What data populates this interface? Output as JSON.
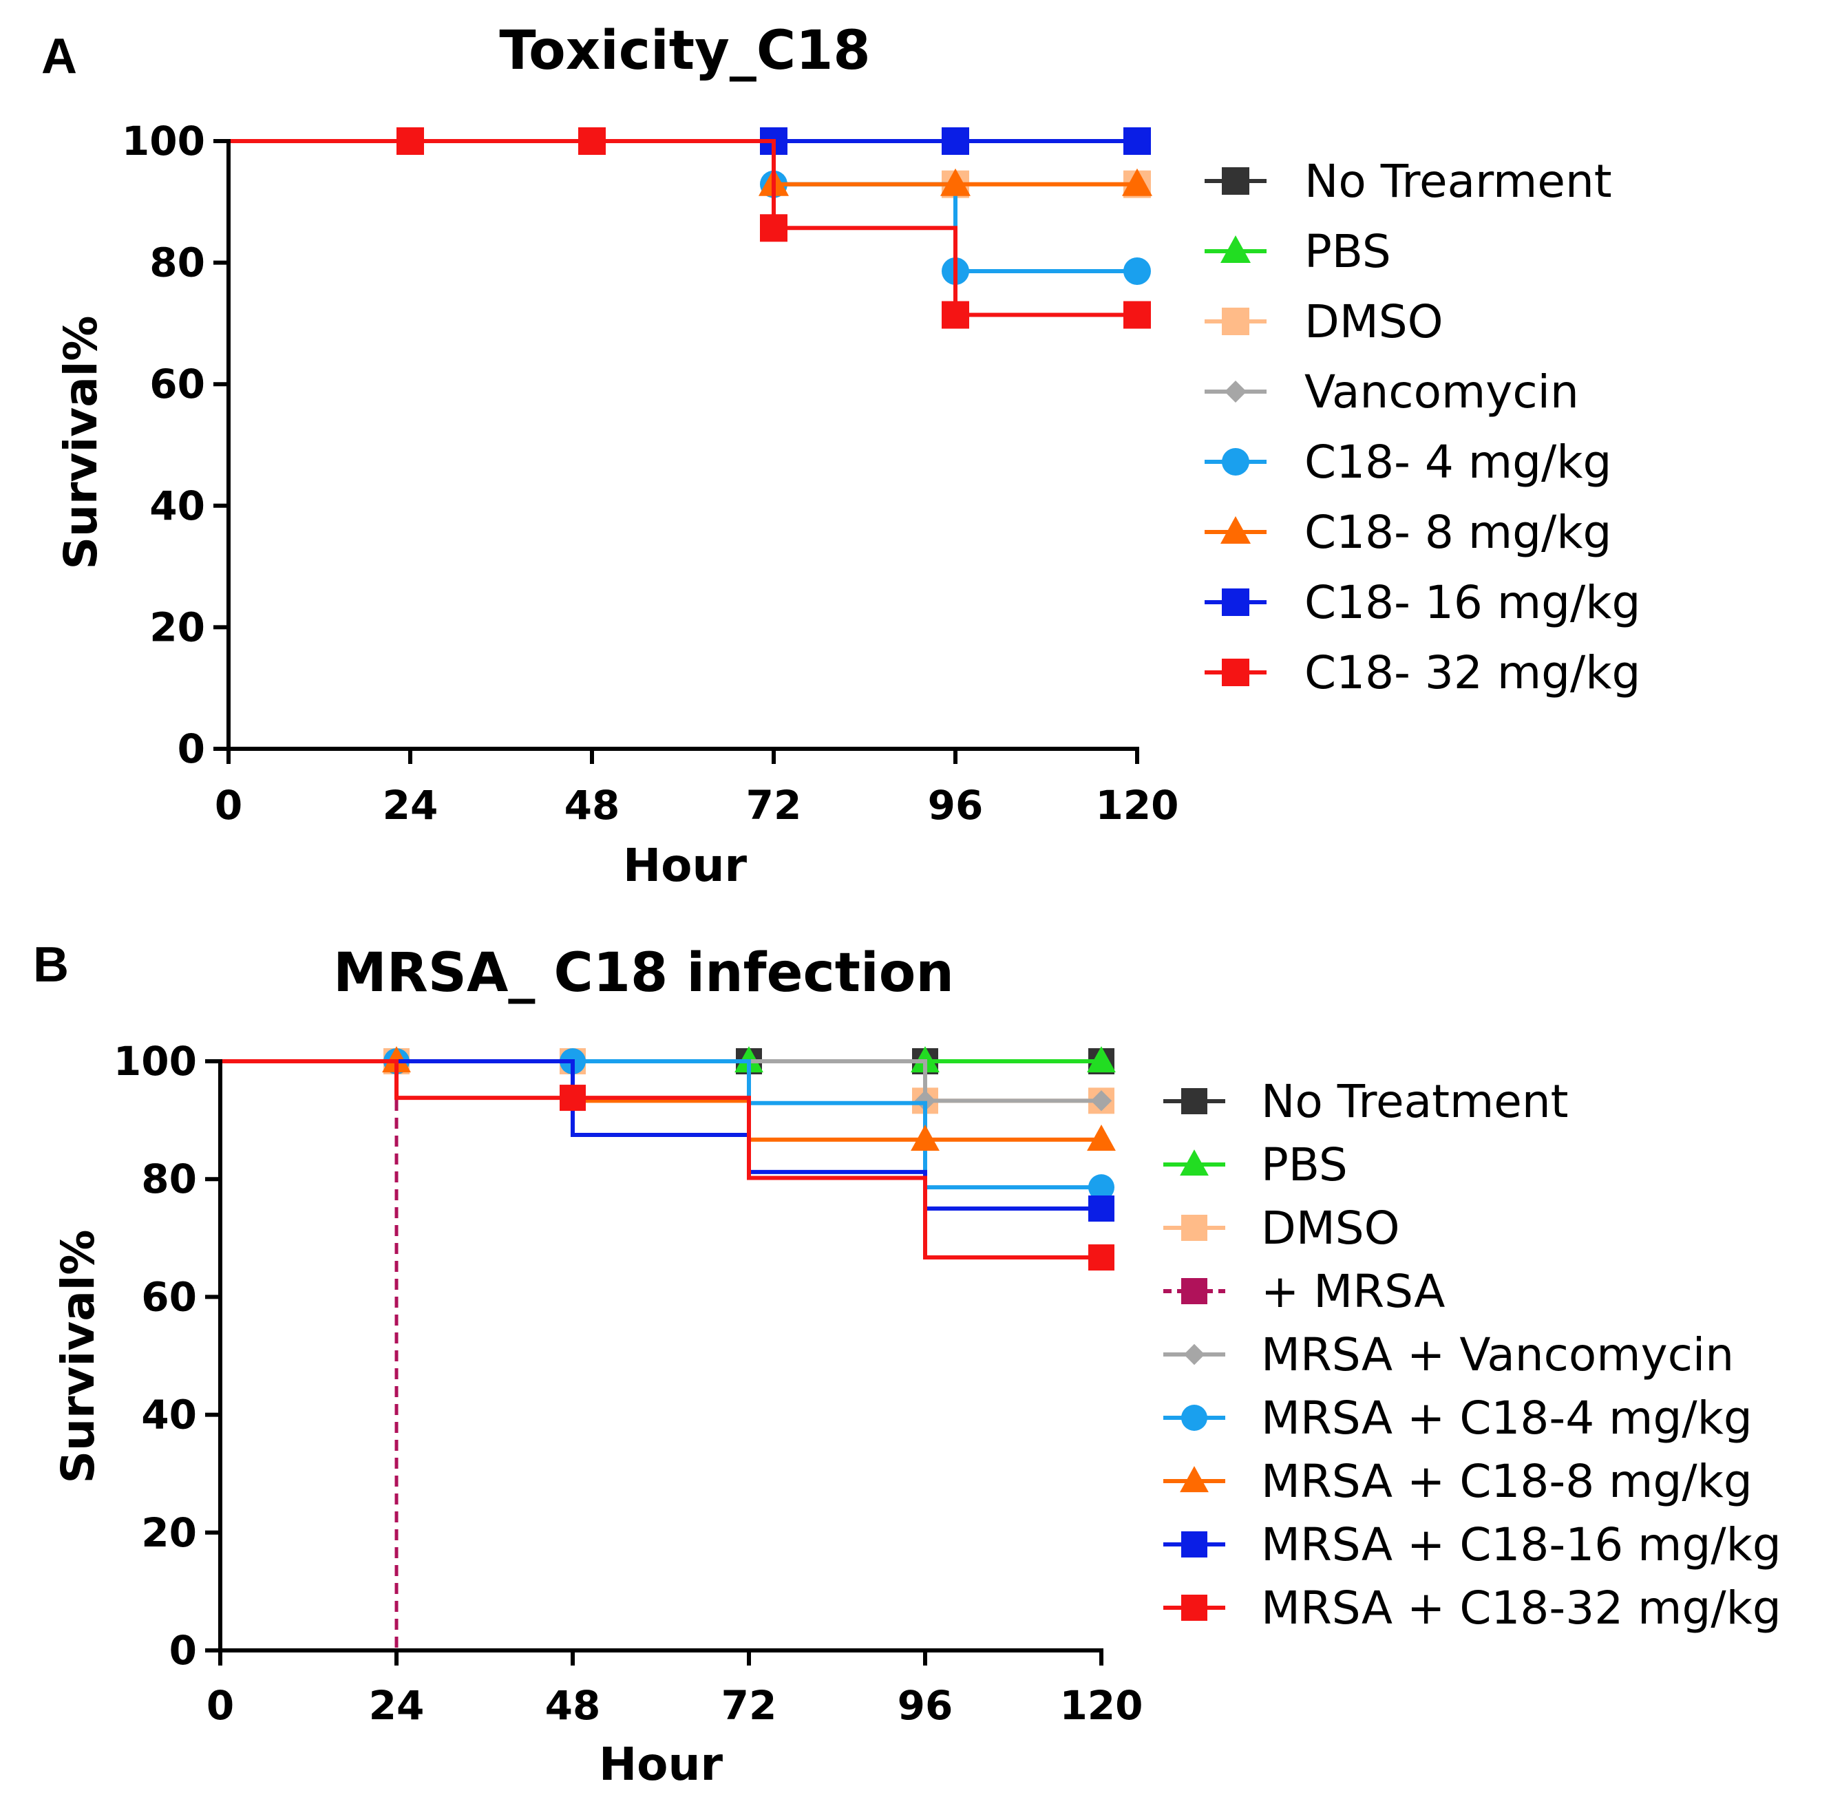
{
  "chart_data": [
    {
      "type": "line",
      "panel_letter": "A",
      "title": "Toxicity_C18",
      "xlabel": "Hour",
      "ylabel": "Survival%",
      "xlim": [
        0,
        120
      ],
      "ylim": [
        0,
        100
      ],
      "xticks": [
        0,
        24,
        48,
        72,
        96,
        120
      ],
      "yticks": [
        0,
        20,
        40,
        60,
        80,
        100
      ],
      "legend_position": "right",
      "series": [
        {
          "name": "No Trearment",
          "color": "#333333",
          "marker": "square",
          "dashed": false,
          "x": [
            0,
            24,
            48,
            72,
            96,
            120
          ],
          "y": [
            100,
            100,
            100,
            100,
            100,
            100
          ],
          "markers_at": []
        },
        {
          "name": "PBS",
          "color": "#22dd22",
          "marker": "triangle",
          "dashed": false,
          "x": [
            0,
            24,
            48,
            72,
            96,
            120
          ],
          "y": [
            100,
            100,
            100,
            100,
            100,
            100
          ],
          "markers_at": []
        },
        {
          "name": "DMSO",
          "color": "#ffbb88",
          "marker": "square",
          "dashed": false,
          "x": [
            0,
            24,
            48,
            72,
            96,
            120
          ],
          "y": [
            100,
            100,
            100,
            92.9,
            92.9,
            92.9
          ],
          "markers_at": [
            96,
            120
          ]
        },
        {
          "name": "Vancomycin",
          "color": "#a6a6a6",
          "marker": "diamond",
          "dashed": false,
          "x": [
            0,
            24,
            48,
            72,
            96,
            120
          ],
          "y": [
            100,
            100,
            100,
            100,
            100,
            100
          ],
          "markers_at": []
        },
        {
          "name": "C18- 4 mg/kg",
          "color": "#1aa0ee",
          "marker": "circle",
          "dashed": false,
          "x": [
            0,
            24,
            48,
            72,
            96,
            120
          ],
          "y": [
            100,
            100,
            100,
            92.9,
            78.6,
            78.6
          ],
          "markers_at": [
            72,
            96,
            120
          ]
        },
        {
          "name": "C18- 8 mg/kg",
          "color": "#ff6a00",
          "marker": "triangle",
          "dashed": false,
          "x": [
            0,
            24,
            48,
            72,
            96,
            120
          ],
          "y": [
            100,
            100,
            100,
            92.9,
            92.9,
            92.9
          ],
          "markers_at": [
            72,
            96,
            120
          ]
        },
        {
          "name": "C18- 16 mg/kg",
          "color": "#0a1ee6",
          "marker": "square",
          "dashed": false,
          "x": [
            0,
            24,
            48,
            72,
            96,
            120
          ],
          "y": [
            100,
            100,
            100,
            100,
            100,
            100
          ],
          "markers_at": [
            72,
            96,
            120
          ]
        },
        {
          "name": "C18- 32 mg/kg",
          "color": "#f51414",
          "marker": "square",
          "dashed": false,
          "x": [
            0,
            24,
            48,
            72,
            96,
            120
          ],
          "y": [
            100,
            100,
            100,
            85.7,
            71.4,
            71.4
          ],
          "markers_at": [
            24,
            48,
            72,
            96,
            120
          ]
        }
      ]
    },
    {
      "type": "line",
      "panel_letter": "B",
      "title": "MRSA_ C18 infection",
      "xlabel": "Hour",
      "ylabel": "Survival%",
      "xlim": [
        0,
        120
      ],
      "ylim": [
        0,
        100
      ],
      "xticks": [
        0,
        24,
        48,
        72,
        96,
        120
      ],
      "yticks": [
        0,
        20,
        40,
        60,
        80,
        100
      ],
      "legend_position": "right",
      "series": [
        {
          "name": "No Treatment",
          "color": "#333333",
          "marker": "square",
          "dashed": false,
          "x": [
            0,
            24,
            48,
            72,
            96,
            120
          ],
          "y": [
            100,
            100,
            100,
            100,
            100,
            100
          ],
          "markers_at": [
            72,
            96,
            120
          ]
        },
        {
          "name": "PBS",
          "color": "#22dd22",
          "marker": "triangle",
          "dashed": false,
          "x": [
            0,
            24,
            48,
            72,
            96,
            120
          ],
          "y": [
            100,
            100,
            100,
            100,
            100,
            100
          ],
          "markers_at": [
            72,
            96,
            120
          ]
        },
        {
          "name": "DMSO",
          "color": "#ffbb88",
          "marker": "square",
          "dashed": false,
          "x": [
            0,
            24,
            48,
            72,
            96,
            120
          ],
          "y": [
            100,
            100,
            100,
            100,
            93.3,
            93.3
          ],
          "markers_at": [
            24,
            48,
            96,
            120
          ]
        },
        {
          "name": "+ MRSA",
          "color": "#b0125a",
          "marker": "square",
          "dashed": true,
          "x": [
            0,
            24
          ],
          "y": [
            100,
            0
          ],
          "markers_at": []
        },
        {
          "name": "MRSA + Vancomycin",
          "color": "#a6a6a6",
          "marker": "diamond",
          "dashed": false,
          "x": [
            0,
            24,
            48,
            72,
            96,
            120
          ],
          "y": [
            100,
            100,
            100,
            100,
            93.3,
            93.3
          ],
          "markers_at": [
            96,
            120
          ]
        },
        {
          "name": "MRSA + C18-4 mg/kg",
          "color": "#1aa0ee",
          "marker": "circle",
          "dashed": false,
          "x": [
            0,
            24,
            48,
            72,
            96,
            120
          ],
          "y": [
            100,
            100,
            100,
            92.9,
            78.6,
            78.6
          ],
          "markers_at": [
            24,
            48,
            120
          ]
        },
        {
          "name": "MRSA + C18-8 mg/kg",
          "color": "#ff6a00",
          "marker": "triangle",
          "dashed": false,
          "x": [
            0,
            24,
            48,
            72,
            96,
            120
          ],
          "y": [
            100,
            100,
            93.3,
            86.7,
            86.7,
            86.7
          ],
          "markers_at": [
            24,
            96,
            120
          ]
        },
        {
          "name": "MRSA + C18-16 mg/kg",
          "color": "#0a1ee6",
          "marker": "square",
          "dashed": false,
          "x": [
            0,
            24,
            48,
            72,
            96,
            120
          ],
          "y": [
            100,
            100,
            87.5,
            81.2,
            75,
            75
          ],
          "markers_at": [
            120
          ]
        },
        {
          "name": "MRSA + C18-32 mg/kg",
          "color": "#f51414",
          "marker": "square",
          "dashed": false,
          "x": [
            0,
            24,
            48,
            72,
            96,
            120
          ],
          "y": [
            100,
            93.8,
            93.8,
            80.2,
            66.7,
            66.7
          ],
          "markers_at": [
            48,
            120
          ]
        }
      ]
    }
  ]
}
